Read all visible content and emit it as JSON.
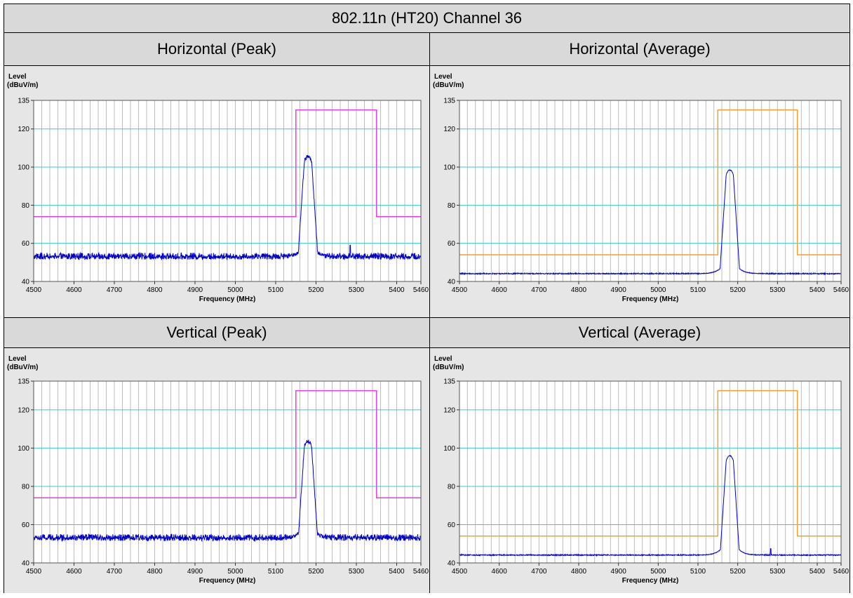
{
  "title": "802.11n (HT20) Channel 36",
  "panels": [
    {
      "header": "Horizontal (Peak)",
      "mode": "peak"
    },
    {
      "header": "Horizontal (Average)",
      "mode": "average"
    },
    {
      "header": "Vertical (Peak)",
      "mode": "peak"
    },
    {
      "header": "Vertical (Average)",
      "mode": "average"
    }
  ],
  "colors": {
    "header_bg": "#d9d9d9",
    "plot_bg": "#ffffff",
    "chart_bg": "#e6e6e6",
    "grid_major": "#33cccc",
    "grid_minor": "#bdbdbd",
    "trace": "#0000cc",
    "limit_peak": "#e040e0",
    "limit_average": "#f0a030"
  },
  "chart_data": [
    {
      "type": "line",
      "title": "Horizontal (Peak)",
      "ylabel_line1": "Level",
      "ylabel_line2": "(dBuV/m)",
      "xlabel": "Frequency (MHz)",
      "xlim": [
        4500,
        5460
      ],
      "ylim": [
        40,
        135
      ],
      "xticks": [
        4500,
        4600,
        4700,
        4800,
        4900,
        5000,
        5100,
        5200,
        5300,
        5400,
        5460
      ],
      "yticks": [
        40,
        60,
        80,
        100,
        120,
        135
      ],
      "grid": true,
      "limit_line": {
        "x": [
          4500,
          5150,
          5150,
          5350,
          5350,
          5460
        ],
        "y": [
          74,
          74,
          130,
          130,
          74,
          74
        ]
      },
      "trace": {
        "noise_floor": 52.5,
        "noise_amp": 2.5,
        "peak_center": 5180,
        "peak_level": 105.5,
        "spur": {
          "x": 5285,
          "y": 59
        }
      }
    },
    {
      "type": "line",
      "title": "Horizontal (Average)",
      "ylabel_line1": "Level",
      "ylabel_line2": "(dBuV/m)",
      "xlabel": "Frequency (MHz)",
      "xlim": [
        4500,
        5460
      ],
      "ylim": [
        40,
        135
      ],
      "xticks": [
        4500,
        4600,
        4700,
        4800,
        4900,
        5000,
        5100,
        5200,
        5300,
        5400,
        5460
      ],
      "yticks": [
        40,
        60,
        80,
        100,
        120,
        135
      ],
      "grid": true,
      "limit_line": {
        "x": [
          4500,
          5150,
          5150,
          5350,
          5350,
          5460
        ],
        "y": [
          54,
          54,
          130,
          130,
          54,
          54
        ]
      },
      "trace": {
        "noise_floor": 44,
        "noise_amp": 0.4,
        "peak_center": 5180,
        "peak_level": 98.5,
        "spur": null
      }
    },
    {
      "type": "line",
      "title": "Vertical (Peak)",
      "ylabel_line1": "Level",
      "ylabel_line2": "(dBuV/m)",
      "xlabel": "Frequency (MHz)",
      "xlim": [
        4500,
        5460
      ],
      "ylim": [
        40,
        135
      ],
      "xticks": [
        4500,
        4600,
        4700,
        4800,
        4900,
        5000,
        5100,
        5200,
        5300,
        5400,
        5460
      ],
      "yticks": [
        40,
        60,
        80,
        100,
        120,
        135
      ],
      "grid": true,
      "limit_line": {
        "x": [
          4500,
          5150,
          5150,
          5350,
          5350,
          5460
        ],
        "y": [
          74,
          74,
          130,
          130,
          74,
          74
        ]
      },
      "trace": {
        "noise_floor": 52.5,
        "noise_amp": 2.5,
        "peak_center": 5180,
        "peak_level": 103.5,
        "spur": null
      }
    },
    {
      "type": "line",
      "title": "Vertical (Average)",
      "ylabel_line1": "Level",
      "ylabel_line2": "(dBuV/m)",
      "xlabel": "Frequency (MHz)",
      "xlim": [
        4500,
        5460
      ],
      "ylim": [
        40,
        135
      ],
      "xticks": [
        4500,
        4600,
        4700,
        4800,
        4900,
        5000,
        5100,
        5200,
        5300,
        5400,
        5460
      ],
      "yticks": [
        40,
        60,
        80,
        100,
        120,
        135
      ],
      "grid": true,
      "limit_line": {
        "x": [
          4500,
          5150,
          5150,
          5350,
          5350,
          5460
        ],
        "y": [
          54,
          54,
          130,
          130,
          54,
          54
        ]
      },
      "trace": {
        "noise_floor": 44,
        "noise_amp": 0.4,
        "peak_center": 5180,
        "peak_level": 96,
        "spur": {
          "x": 5283,
          "y": 47.5
        }
      }
    }
  ]
}
